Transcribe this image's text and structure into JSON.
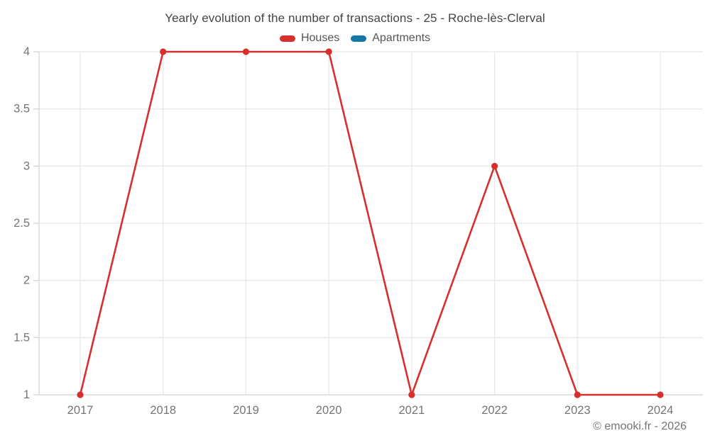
{
  "header": {
    "title": "Yearly evolution of the number of transactions - 25 - Roche-lès-Clerval"
  },
  "legend": {
    "items": [
      {
        "label": "Houses",
        "color": "#d5302d"
      },
      {
        "label": "Apartments",
        "color": "#1576a8"
      }
    ]
  },
  "footer": {
    "copyright": "© emooki.fr - 2026"
  },
  "chart_data": {
    "type": "line",
    "title": "Yearly evolution of the number of transactions - 25 - Roche-lès-Clerval",
    "categories": [
      "2017",
      "2018",
      "2019",
      "2020",
      "2021",
      "2022",
      "2023",
      "2024"
    ],
    "series": [
      {
        "name": "Houses",
        "color": "#d5302d",
        "values": [
          1,
          4,
          4,
          4,
          1,
          3,
          1,
          1
        ]
      },
      {
        "name": "Apartments",
        "color": "#1576a8",
        "values": []
      }
    ],
    "xlabel": "",
    "ylabel": "",
    "ylim": [
      1,
      4
    ],
    "yticks": [
      1,
      1.5,
      2,
      2.5,
      3,
      3.5,
      4
    ],
    "grid": true,
    "legend_position": "top",
    "marker": "circle"
  },
  "style": {
    "grid_color": "#e8e8e8",
    "axis_color": "#d6d6d6",
    "tick_label_color": "#757575",
    "background": "#ffffff"
  }
}
